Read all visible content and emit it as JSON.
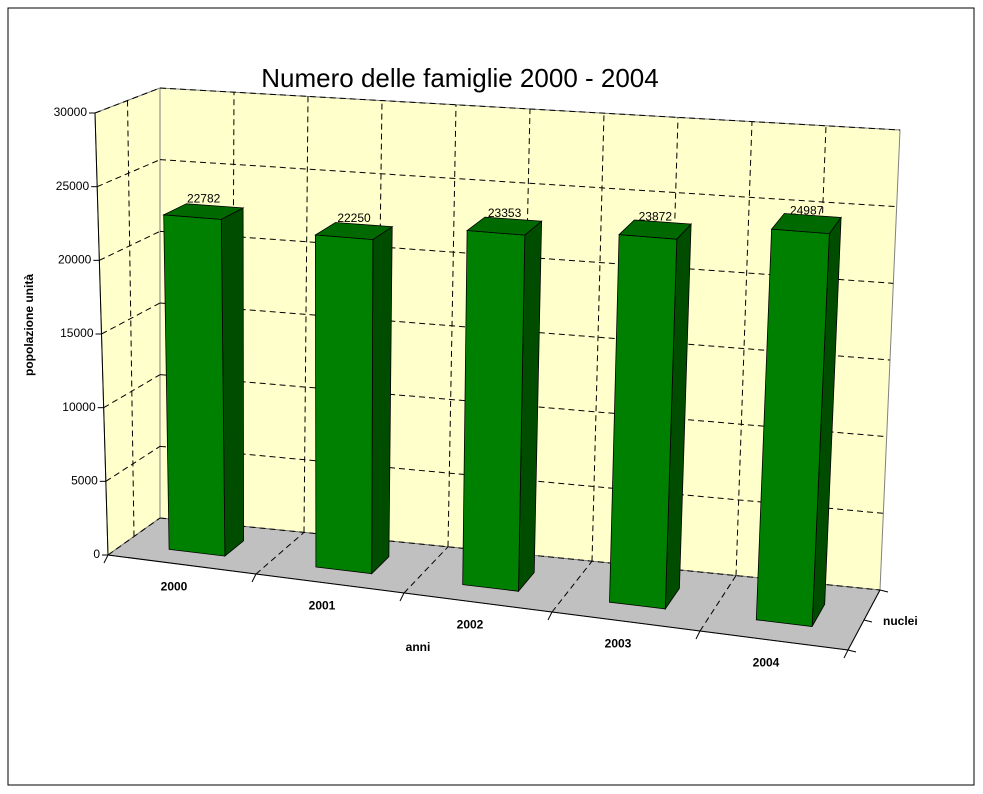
{
  "chart_data": {
    "type": "bar3d",
    "title": "Numero delle famiglie 2000 - 2004",
    "xlabel": "anni",
    "ylabel": "popolazione unità",
    "zlabel": "nuclei",
    "categories": [
      "2000",
      "2001",
      "2002",
      "2003",
      "2004"
    ],
    "values": [
      22782,
      22250,
      23353,
      23872,
      24987
    ],
    "color": "#008000",
    "ylim": [
      0,
      30000
    ],
    "yticks": [
      0,
      5000,
      10000,
      15000,
      20000,
      25000,
      30000
    ],
    "grid": true
  }
}
